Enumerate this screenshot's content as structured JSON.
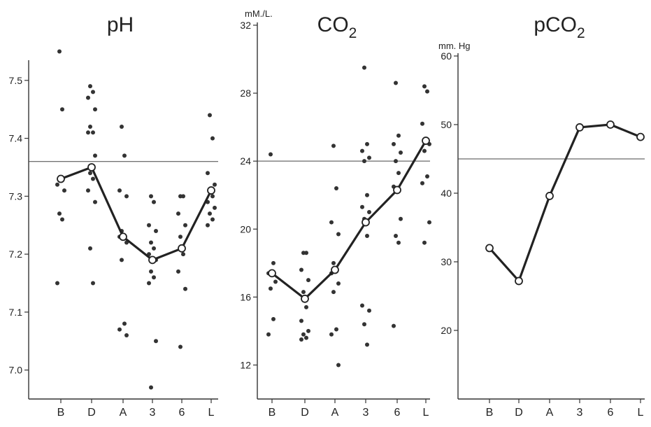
{
  "chart_data": [
    {
      "type": "scatter",
      "title": "pH",
      "ylabel": "",
      "y_unit_label": "",
      "ylim": [
        6.95,
        7.53
      ],
      "yticks": [
        "7.0",
        "7.1",
        "7.2",
        "7.3",
        "7.4",
        "7.5"
      ],
      "ytick_values": [
        7.0,
        7.1,
        7.2,
        7.3,
        7.4,
        7.5
      ],
      "categories": [
        "B",
        "D",
        "A",
        "3",
        "6",
        "L"
      ],
      "reference_line": 7.36,
      "mean_values": [
        7.33,
        7.35,
        7.23,
        7.19,
        7.21,
        7.31
      ],
      "points": [
        [
          7.55,
          7.45,
          7.32,
          7.31,
          7.27,
          7.26,
          7.15
        ],
        [
          7.49,
          7.48,
          7.47,
          7.45,
          7.42,
          7.41,
          7.41,
          7.37,
          7.34,
          7.33,
          7.31,
          7.29,
          7.21,
          7.15
        ],
        [
          7.42,
          7.37,
          7.31,
          7.3,
          7.24,
          7.23,
          7.23,
          7.22,
          7.19,
          7.08,
          7.07,
          7.06
        ],
        [
          7.3,
          7.29,
          7.25,
          7.24,
          7.22,
          7.21,
          7.2,
          7.19,
          7.17,
          7.16,
          7.15,
          7.05,
          6.97
        ],
        [
          7.3,
          7.3,
          7.27,
          7.25,
          7.23,
          7.2,
          7.17,
          7.14,
          7.04
        ],
        [
          7.44,
          7.4,
          7.34,
          7.32,
          7.31,
          7.3,
          7.29,
          7.28,
          7.27,
          7.26,
          7.25
        ]
      ]
    },
    {
      "type": "scatter",
      "title": "CO2",
      "ylabel": "",
      "y_unit_label": "mM./L.",
      "ylim": [
        10,
        32
      ],
      "yticks": [
        "12",
        "16",
        "20",
        "24",
        "28",
        "32"
      ],
      "ytick_values": [
        12,
        16,
        20,
        24,
        28,
        32
      ],
      "categories": [
        "B",
        "D",
        "A",
        "3",
        "6",
        "L"
      ],
      "reference_line": 24,
      "mean_values": [
        17.4,
        15.9,
        17.6,
        20.4,
        22.3,
        25.2
      ],
      "points": [
        [
          24.4,
          18.0,
          17.4,
          16.9,
          16.5,
          14.7,
          13.8
        ],
        [
          18.6,
          18.6,
          17.6,
          17.0,
          16.3,
          15.4,
          14.6,
          14.0,
          13.8,
          13.6,
          13.5
        ],
        [
          24.9,
          22.4,
          20.4,
          19.7,
          18.0,
          17.6,
          17.4,
          16.8,
          16.3,
          14.1,
          13.8,
          12.0
        ],
        [
          29.5,
          25.0,
          24.6,
          24.2,
          24.0,
          22.0,
          21.3,
          21.0,
          20.6,
          19.6,
          15.5,
          15.2,
          14.4,
          13.2
        ],
        [
          28.6,
          25.5,
          25.0,
          24.5,
          24.0,
          23.3,
          22.5,
          20.6,
          19.6,
          19.2,
          14.3
        ],
        [
          28.4,
          28.1,
          26.2,
          25.0,
          24.6,
          23.1,
          22.7,
          20.4,
          19.2
        ]
      ]
    },
    {
      "type": "line",
      "title": "pCO2",
      "ylabel": "",
      "y_unit_label": "mm. Hg",
      "ylim": [
        10,
        60
      ],
      "yticks": [
        "20",
        "30",
        "40",
        "50",
        "60"
      ],
      "ytick_values": [
        20,
        30,
        40,
        50,
        60
      ],
      "categories": [
        "B",
        "D",
        "A",
        "3",
        "6",
        "L"
      ],
      "reference_line": 45,
      "mean_values": [
        32.0,
        27.2,
        39.6,
        49.6,
        50.0,
        48.2
      ],
      "points": []
    }
  ]
}
